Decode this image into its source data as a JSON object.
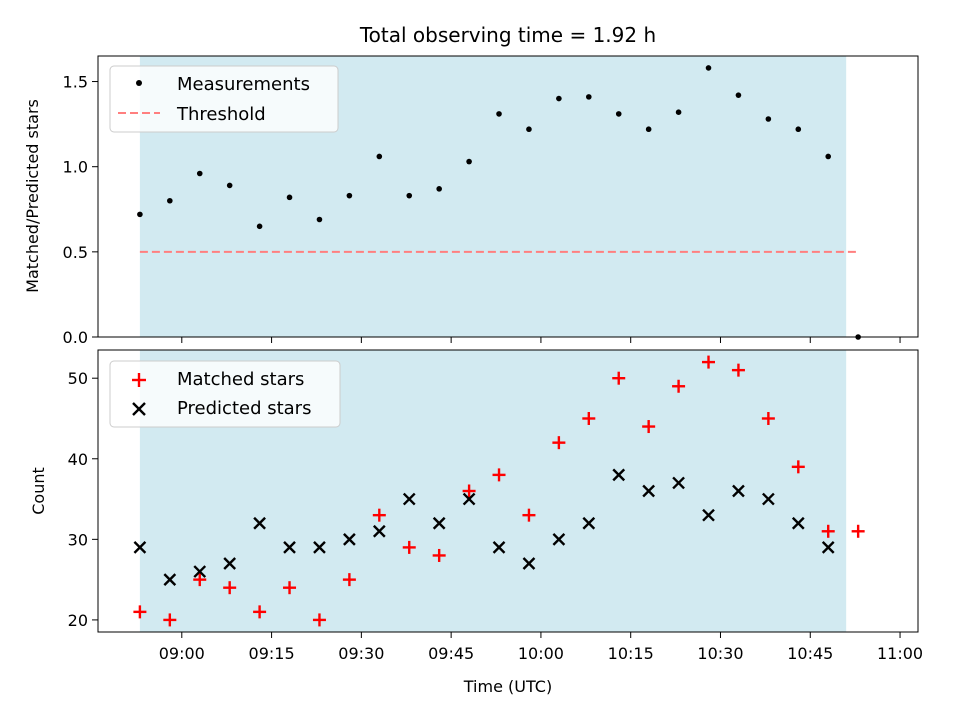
{
  "chart_data": [
    {
      "type": "scatter",
      "title": "Total observing time = 1.92 h",
      "xlabel": "",
      "ylabel": "Matched/Predicted stars",
      "ylim": [
        0,
        1.65
      ],
      "yticks": [
        "0.0",
        "0.5",
        "1.0",
        "1.5"
      ],
      "yticks_values": [
        0,
        0.5,
        1.0,
        1.5
      ],
      "shaded_interval": [
        "08:53",
        "10:51"
      ],
      "shade_color": "#add8e6",
      "legend": {
        "placement": "top-left",
        "entries": [
          "Measurements",
          "Threshold"
        ]
      },
      "series": [
        {
          "name": "Measurements",
          "marker": "dot",
          "color": "#000000",
          "x": [
            "08:53",
            "08:58",
            "09:03",
            "09:08",
            "09:13",
            "09:18",
            "09:23",
            "09:28",
            "09:33",
            "09:38",
            "09:43",
            "09:48",
            "09:53",
            "09:58",
            "10:03",
            "10:08",
            "10:13",
            "10:18",
            "10:23",
            "10:28",
            "10:33",
            "10:38",
            "10:43",
            "10:48",
            "10:53"
          ],
          "y": [
            0.72,
            0.8,
            0.96,
            0.89,
            0.65,
            0.82,
            0.69,
            0.83,
            1.06,
            0.83,
            0.87,
            1.03,
            1.31,
            1.22,
            1.4,
            1.41,
            1.31,
            1.22,
            1.32,
            1.58,
            1.42,
            1.28,
            1.22,
            1.06,
            0.0
          ]
        },
        {
          "name": "Threshold",
          "marker": "dashed-line",
          "color": "#ff7f7f",
          "x": [
            "08:53",
            "10:53"
          ],
          "y": [
            0.5,
            0.5
          ]
        }
      ]
    },
    {
      "type": "scatter",
      "title": "",
      "xlabel": "Time (UTC)",
      "ylabel": "Count",
      "ylim": [
        18.5,
        53.5
      ],
      "yticks": [
        "20",
        "30",
        "40",
        "50"
      ],
      "yticks_values": [
        20,
        30,
        40,
        50
      ],
      "xticks": [
        "09:00",
        "09:15",
        "09:30",
        "09:45",
        "10:00",
        "10:15",
        "10:30",
        "10:45",
        "11:00"
      ],
      "xticks_values": [
        "09:00",
        "09:15",
        "09:30",
        "09:45",
        "10:00",
        "10:15",
        "10:30",
        "10:45",
        "11:00"
      ],
      "xlim": [
        "08:46",
        "11:03"
      ],
      "shaded_interval": [
        "08:53",
        "10:51"
      ],
      "shade_color": "#add8e6",
      "legend": {
        "placement": "top-left",
        "entries": [
          "Matched stars",
          "Predicted stars"
        ]
      },
      "series": [
        {
          "name": "Matched stars",
          "marker": "plus",
          "color": "#ff0000",
          "x": [
            "08:53",
            "08:58",
            "09:03",
            "09:08",
            "09:13",
            "09:18",
            "09:23",
            "09:28",
            "09:33",
            "09:38",
            "09:43",
            "09:48",
            "09:53",
            "09:58",
            "10:03",
            "10:08",
            "10:13",
            "10:18",
            "10:23",
            "10:28",
            "10:33",
            "10:38",
            "10:43",
            "10:48",
            "10:53"
          ],
          "y": [
            21,
            20,
            25,
            24,
            21,
            24,
            20,
            25,
            33,
            29,
            28,
            36,
            38,
            33,
            42,
            45,
            50,
            44,
            49,
            52,
            51,
            45,
            39,
            31,
            31
          ]
        },
        {
          "name": "Predicted stars",
          "marker": "x",
          "color": "#000000",
          "x": [
            "08:53",
            "08:58",
            "09:03",
            "09:08",
            "09:13",
            "09:18",
            "09:23",
            "09:28",
            "09:33",
            "09:38",
            "09:43",
            "09:48",
            "09:53",
            "09:58",
            "10:03",
            "10:08",
            "10:13",
            "10:18",
            "10:23",
            "10:28",
            "10:33",
            "10:38",
            "10:43",
            "10:48"
          ],
          "y": [
            29,
            25,
            26,
            27,
            32,
            29,
            29,
            30,
            31,
            35,
            32,
            35,
            29,
            27,
            30,
            32,
            38,
            36,
            37,
            33,
            36,
            35,
            32,
            29
          ]
        }
      ]
    }
  ]
}
